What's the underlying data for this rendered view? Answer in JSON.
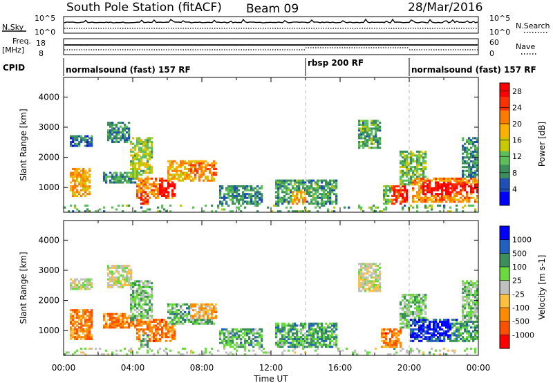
{
  "header": {
    "station": "South Pole Station (fitACF)",
    "beam": "Beam 09",
    "date": "28/Mar/2016"
  },
  "top_panels": {
    "nsky_label": "N.Sky",
    "nsky_ticks": [
      "10^5",
      "10^0"
    ],
    "nsearch_label": "N.Search",
    "nsearch_ticks": [
      "10^5",
      "10^0"
    ],
    "freq_label_1": "Freq.",
    "freq_label_2": "[MHz]",
    "freq_ticks": [
      "18",
      "8"
    ],
    "nave_label": "Nave",
    "nave_ticks": [
      "60",
      "0"
    ],
    "cpid_label": "CPID"
  },
  "cpid_segments": [
    {
      "label": "normalsound (fast) 157 RF",
      "start_hour": 0,
      "end_hour": 14
    },
    {
      "label": "rbsp 200 RF",
      "start_hour": 14,
      "end_hour": 20
    },
    {
      "label": "normalsound (fast) 157 RF",
      "start_hour": 20,
      "end_hour": 24
    }
  ],
  "colors": {
    "power_scale": [
      "#0000ff",
      "#1f4fb4",
      "#3a8f5a",
      "#5cbf5c",
      "#c8c800",
      "#ffb000",
      "#ff7a00",
      "#ff3000",
      "#ff0000"
    ],
    "velocity_scale": [
      "#ff0000",
      "#ff5000",
      "#ff8c00",
      "#ffc040",
      "#c0c0c0",
      "#6adb3c",
      "#3a8f5a",
      "#2060c0",
      "#0000ff"
    ]
  },
  "chart_data": [
    {
      "type": "heatmap",
      "name": "Power",
      "xlabel": "Time UT",
      "ylabel": "Slant Range [km]",
      "x_ticks": [
        "00:00",
        "04:00",
        "08:00",
        "12:00",
        "16:00",
        "20:00",
        "00:00"
      ],
      "xlim_hours": [
        0,
        24
      ],
      "y_ticks": [
        1000,
        2000,
        3000,
        4000
      ],
      "ylim": [
        180,
        4650
      ],
      "colorbar": {
        "label": "Power [dB]",
        "ticks": [
          4,
          8,
          12,
          16,
          20,
          24,
          28
        ],
        "range": [
          0,
          30
        ]
      },
      "blobs": [
        {
          "t0": 0.4,
          "t1": 1.6,
          "r0": 700,
          "r1": 1650,
          "level": 0.62
        },
        {
          "t0": 0.4,
          "t1": 1.7,
          "r0": 2350,
          "r1": 2750,
          "level": 0.22
        },
        {
          "t0": 2.3,
          "t1": 4.6,
          "r0": 1150,
          "r1": 1550,
          "level": 0.3
        },
        {
          "t0": 2.5,
          "t1": 3.8,
          "r0": 2450,
          "r1": 3150,
          "level": 0.28
        },
        {
          "t0": 3.8,
          "t1": 5.2,
          "r0": 1300,
          "r1": 2650,
          "level": 0.45
        },
        {
          "t0": 4.2,
          "t1": 6.4,
          "r0": 650,
          "r1": 1350,
          "level": 0.7
        },
        {
          "t0": 4.4,
          "t1": 4.9,
          "r0": 250,
          "r1": 900,
          "level": 0.85
        },
        {
          "t0": 5.5,
          "t1": 6.5,
          "r0": 700,
          "r1": 1250,
          "level": 0.92
        },
        {
          "t0": 6.0,
          "t1": 8.8,
          "r0": 1200,
          "r1": 1900,
          "level": 0.62
        },
        {
          "t0": 7.3,
          "t1": 8.9,
          "r0": 1400,
          "r1": 1850,
          "level": 0.72
        },
        {
          "t0": 9.0,
          "t1": 11.5,
          "r0": 280,
          "r1": 1050,
          "level": 0.28
        },
        {
          "t0": 12.2,
          "t1": 15.8,
          "r0": 350,
          "r1": 1250,
          "level": 0.32
        },
        {
          "t0": 13.2,
          "t1": 14.0,
          "r0": 350,
          "r1": 900,
          "level": 0.62
        },
        {
          "t0": 17.1,
          "t1": 18.3,
          "r0": 2300,
          "r1": 3250,
          "level": 0.35
        },
        {
          "t0": 18.5,
          "t1": 19.2,
          "r0": 450,
          "r1": 1100,
          "level": 0.42
        },
        {
          "t0": 19.0,
          "t1": 19.9,
          "r0": 300,
          "r1": 1050,
          "level": 0.86
        },
        {
          "t0": 19.5,
          "t1": 21.0,
          "r0": 1100,
          "r1": 2200,
          "level": 0.38
        },
        {
          "t0": 20.2,
          "t1": 24.0,
          "r0": 500,
          "r1": 1350,
          "level": 0.68
        },
        {
          "t0": 20.8,
          "t1": 22.5,
          "r0": 750,
          "r1": 1200,
          "level": 0.95
        },
        {
          "t0": 22.5,
          "t1": 24.0,
          "r0": 800,
          "r1": 1150,
          "level": 0.9
        },
        {
          "t0": 23.0,
          "t1": 24.0,
          "r0": 1350,
          "r1": 2700,
          "level": 0.3
        },
        {
          "t0": 0.0,
          "t1": 24.0,
          "r0": 190,
          "r1": 430,
          "level": 0.35
        }
      ]
    },
    {
      "type": "heatmap",
      "name": "Velocity",
      "xlabel": "Time UT",
      "ylabel": "Slant Range [km]",
      "x_ticks": [
        "00:00",
        "04:00",
        "08:00",
        "12:00",
        "16:00",
        "20:00",
        "00:00"
      ],
      "xlim_hours": [
        0,
        24
      ],
      "y_ticks": [
        1000,
        2000,
        3000,
        4000
      ],
      "ylim": [
        180,
        4650
      ],
      "colorbar": {
        "label": "Velocity [m s-1]",
        "ticks": [
          -1000,
          -500,
          -100,
          -25,
          25,
          100,
          500,
          1000
        ],
        "range": [
          -1250,
          1250
        ]
      },
      "blobs": [
        {
          "t0": 0.4,
          "t1": 1.7,
          "r0": 700,
          "r1": 1700,
          "level": 0.25
        },
        {
          "t0": 0.4,
          "t1": 1.7,
          "r0": 2350,
          "r1": 2750,
          "level": 0.5
        },
        {
          "t0": 2.3,
          "t1": 4.6,
          "r0": 1100,
          "r1": 1600,
          "level": 0.25
        },
        {
          "t0": 2.5,
          "t1": 4.0,
          "r0": 2400,
          "r1": 3150,
          "level": 0.5
        },
        {
          "t0": 3.8,
          "t1": 5.2,
          "r0": 1300,
          "r1": 2650,
          "level": 0.6
        },
        {
          "t0": 4.2,
          "t1": 6.5,
          "r0": 650,
          "r1": 1400,
          "level": 0.25
        },
        {
          "t0": 4.4,
          "t1": 4.9,
          "r0": 250,
          "r1": 900,
          "level": 0.68
        },
        {
          "t0": 6.0,
          "t1": 8.8,
          "r0": 1200,
          "r1": 1900,
          "level": 0.65
        },
        {
          "t0": 7.3,
          "t1": 8.9,
          "r0": 1400,
          "r1": 1900,
          "level": 0.36
        },
        {
          "t0": 9.0,
          "t1": 11.5,
          "r0": 300,
          "r1": 1100,
          "level": 0.66
        },
        {
          "t0": 12.2,
          "t1": 15.8,
          "r0": 350,
          "r1": 1250,
          "level": 0.68
        },
        {
          "t0": 17.1,
          "t1": 18.3,
          "r0": 2300,
          "r1": 3250,
          "level": 0.48
        },
        {
          "t0": 18.3,
          "t1": 19.6,
          "r0": 450,
          "r1": 1100,
          "level": 0.25
        },
        {
          "t0": 19.4,
          "t1": 21.0,
          "r0": 1100,
          "r1": 2200,
          "level": 0.62
        },
        {
          "t0": 20.0,
          "t1": 22.8,
          "r0": 600,
          "r1": 1400,
          "level": 0.88
        },
        {
          "t0": 21.0,
          "t1": 22.5,
          "r0": 800,
          "r1": 1350,
          "level": 0.97
        },
        {
          "t0": 22.5,
          "t1": 24.0,
          "r0": 650,
          "r1": 1350,
          "level": 0.7
        },
        {
          "t0": 23.0,
          "t1": 24.0,
          "r0": 1350,
          "r1": 2700,
          "level": 0.6
        },
        {
          "t0": 0.0,
          "t1": 24.0,
          "r0": 190,
          "r1": 430,
          "level": 0.55
        }
      ]
    }
  ]
}
